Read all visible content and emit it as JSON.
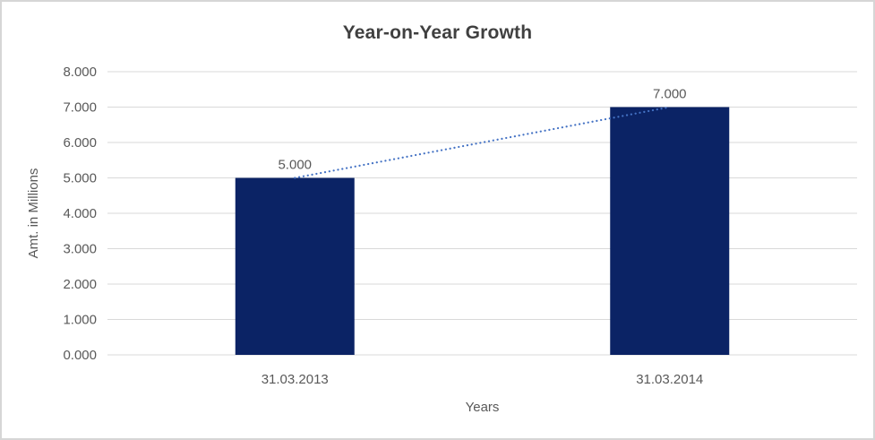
{
  "chart_data": {
    "type": "bar",
    "title": "Year-on-Year Growth",
    "xlabel": "Years",
    "ylabel": "Amt. in Millions",
    "categories": [
      "31.03.2013",
      "31.03.2014"
    ],
    "series": [
      {
        "name": "Amt. in Millions",
        "values": [
          5.0,
          7.0
        ]
      }
    ],
    "data_labels": [
      "5.000",
      "7.000"
    ],
    "y_ticks": [
      {
        "value": 8,
        "label": "8.000"
      },
      {
        "value": 7,
        "label": "7.000"
      },
      {
        "value": 6,
        "label": "6.000"
      },
      {
        "value": 5,
        "label": "5.000"
      },
      {
        "value": 4,
        "label": "4.000"
      },
      {
        "value": 3,
        "label": "3.000"
      },
      {
        "value": 2,
        "label": "2.000"
      },
      {
        "value": 1,
        "label": "1.000"
      },
      {
        "value": 0,
        "label": "0.000"
      }
    ],
    "ylim": [
      0,
      8
    ],
    "grid": true,
    "legend": "none",
    "trendline": {
      "type": "linear",
      "style": "dotted",
      "from_point": [
        0,
        5.0
      ],
      "to_point": [
        1,
        7.0
      ]
    },
    "colors": {
      "bar": "#0b2365",
      "trendline": "#4472c4",
      "gridline": "#d9d9d9",
      "axis_text": "#595959",
      "title_text": "#404040",
      "border": "#d6d6d6",
      "background": "#ffffff"
    }
  }
}
